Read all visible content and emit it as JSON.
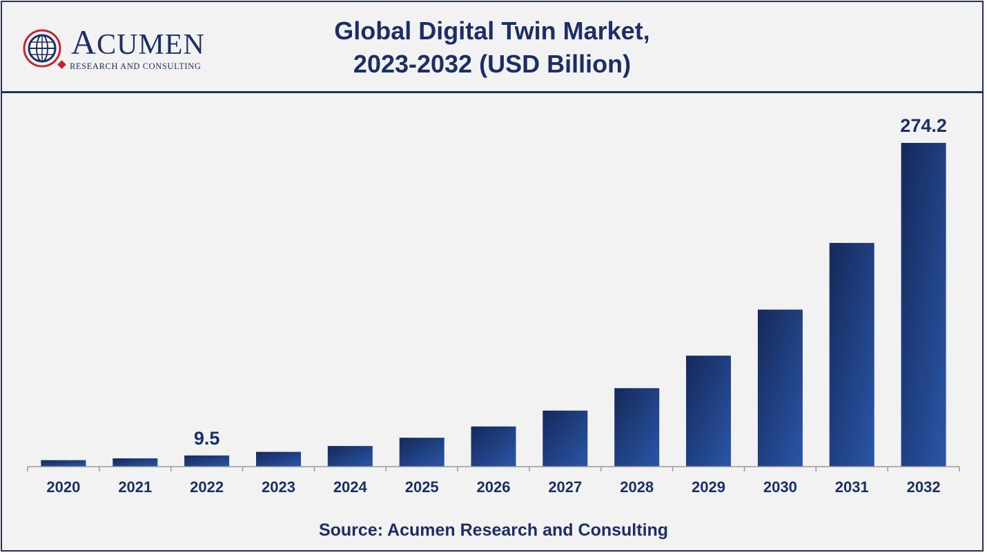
{
  "brand": {
    "name": "ACUMEN",
    "name_first": "A",
    "name_rest": "CUMEN",
    "tagline": "RESEARCH AND CONSULTING",
    "logo_icon": "globe-icon"
  },
  "title_line1": "Global Digital Twin Market,",
  "title_line2": "2023-2032 (USD Billion)",
  "source": "Source: Acumen Research and Consulting",
  "colors": {
    "bar_dark": "#15295a",
    "bar_light": "#2a56a8",
    "text": "#1b2f66",
    "background": "#f2f2f2",
    "axis": "#999999"
  },
  "chart_data": {
    "type": "bar",
    "title": "Global Digital Twin Market, 2023-2032 (USD Billion)",
    "categories": [
      "2020",
      "2021",
      "2022",
      "2023",
      "2024",
      "2025",
      "2026",
      "2027",
      "2028",
      "2029",
      "2030",
      "2031",
      "2032"
    ],
    "values": [
      5.5,
      7.0,
      9.5,
      12.5,
      17.5,
      24.5,
      34.0,
      47.5,
      66.5,
      94.0,
      133.0,
      189.5,
      274.2
    ],
    "data_labels": [
      {
        "category": "2022",
        "text": "9.5"
      },
      {
        "category": "2032",
        "text": "274.2"
      }
    ],
    "ylim": [
      0,
      274.2
    ],
    "grid": false,
    "legend": "none"
  }
}
